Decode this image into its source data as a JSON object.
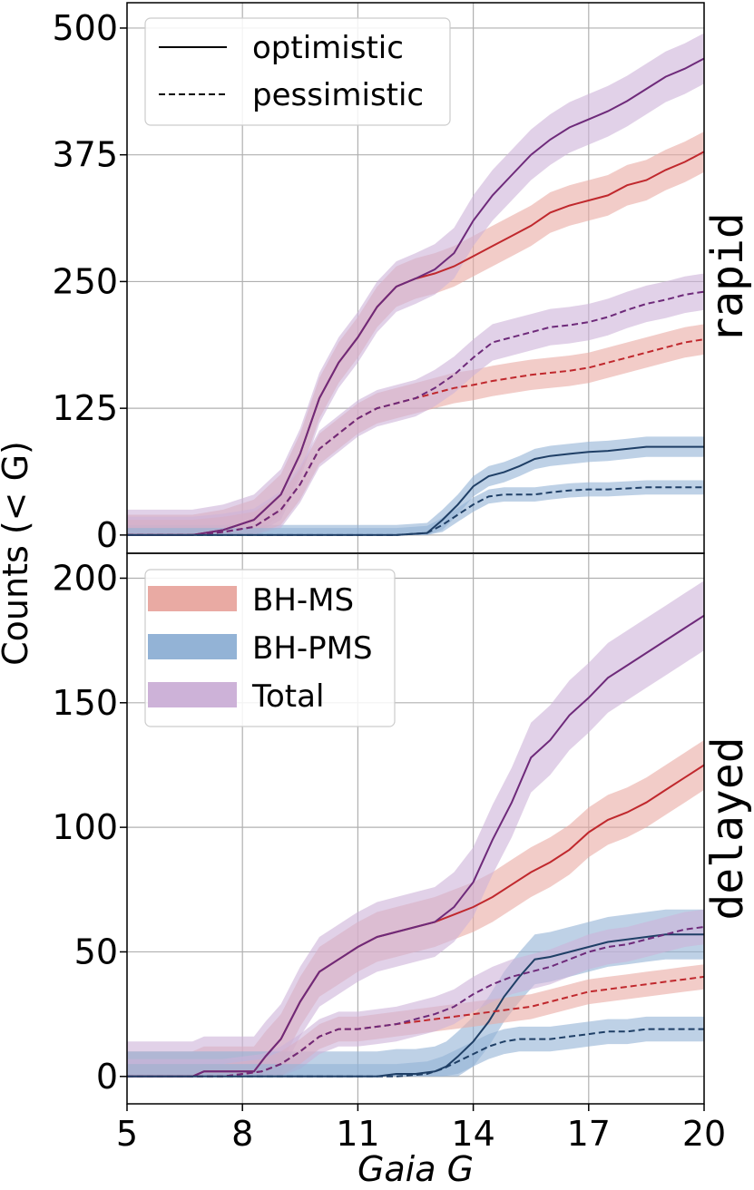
{
  "chart_data": {
    "type": "line",
    "xlabel": "Gaia G",
    "ylabel": "Counts (< G)",
    "x_ticks": [
      "5",
      "8",
      "11",
      "14",
      "17",
      "20"
    ],
    "xlim": [
      5,
      20
    ],
    "grid": true,
    "colors": {
      "BH-MS": "#c0282d",
      "BH-PMS": "#1f3f66",
      "Total": "#6e2a7a",
      "BH-MS_band": "#e9aaa3",
      "BH-PMS_band": "#93b3d6",
      "Total_band": "#cdb2d8"
    },
    "line_legend": {
      "solid": "optimistic",
      "dashed": "pessimistic",
      "placement": "top-left"
    },
    "band_legend": {
      "items": [
        "BH-MS",
        "BH-PMS",
        "Total"
      ],
      "placement": "upper-left"
    },
    "panels": [
      {
        "label": "rapid",
        "ylim": [
          -18,
          525
        ],
        "y_ticks": [
          0,
          125,
          250,
          375,
          500
        ],
        "series": [
          {
            "name": "BH-MS",
            "style": "optimistic",
            "x": [
              5,
              6.7,
              7.5,
              8.3,
              9,
              9.5,
              10,
              10.5,
              11,
              11.5,
              12,
              12.5,
              13,
              13.5,
              14,
              14.5,
              15,
              15.5,
              16,
              16.5,
              17,
              17.5,
              18,
              18.5,
              19,
              19.5,
              20
            ],
            "y": [
              0,
              0,
              5,
              15,
              40,
              80,
              135,
              170,
              195,
              225,
              245,
              253,
              258,
              265,
              275,
              285,
              295,
              305,
              318,
              325,
              330,
              335,
              345,
              350,
              360,
              368,
              378
            ],
            "band": 20
          },
          {
            "name": "Total",
            "style": "optimistic",
            "x": [
              5,
              6.7,
              7.5,
              8.3,
              9,
              9.5,
              10,
              10.5,
              11,
              11.5,
              12,
              12.5,
              13,
              13.5,
              14,
              14.5,
              15,
              15.5,
              16,
              16.5,
              17,
              17.5,
              18,
              18.5,
              19,
              19.5,
              20
            ],
            "y": [
              0,
              0,
              5,
              15,
              40,
              80,
              135,
              170,
              195,
              225,
              245,
              253,
              262,
              278,
              310,
              335,
              355,
              375,
              390,
              402,
              410,
              418,
              428,
              440,
              452,
              460,
              470
            ],
            "band": 25
          },
          {
            "name": "BH-PMS",
            "style": "optimistic",
            "x": [
              5,
              12,
              12.8,
              13.2,
              13.6,
              14,
              14.4,
              14.8,
              15.2,
              15.6,
              16,
              16.5,
              17,
              17.5,
              18,
              18.5,
              19,
              20
            ],
            "y": [
              0,
              0,
              2,
              15,
              30,
              48,
              58,
              62,
              68,
              75,
              78,
              80,
              82,
              83,
              85,
              87,
              87,
              87
            ],
            "band": 10
          },
          {
            "name": "BH-MS",
            "style": "pessimistic",
            "x": [
              5,
              6.7,
              7.5,
              8.3,
              9,
              9.5,
              10,
              10.5,
              11,
              11.5,
              12,
              12.5,
              13,
              13.5,
              14,
              14.5,
              15,
              15.5,
              16,
              16.5,
              17,
              17.5,
              18,
              18.5,
              19,
              19.5,
              20
            ],
            "y": [
              0,
              0,
              3,
              8,
              25,
              50,
              85,
              100,
              115,
              125,
              130,
              135,
              140,
              145,
              148,
              152,
              155,
              158,
              160,
              162,
              165,
              170,
              175,
              180,
              185,
              190,
              193
            ],
            "band": 15
          },
          {
            "name": "Total",
            "style": "pessimistic",
            "x": [
              5,
              6.7,
              7.5,
              8.3,
              9,
              9.5,
              10,
              10.5,
              11,
              11.5,
              12,
              12.5,
              13,
              13.5,
              14,
              14.5,
              15,
              15.5,
              16,
              16.5,
              17,
              17.5,
              18,
              18.5,
              19,
              19.5,
              20
            ],
            "y": [
              0,
              0,
              3,
              8,
              25,
              50,
              85,
              100,
              115,
              125,
              130,
              135,
              145,
              158,
              175,
              190,
              195,
              200,
              205,
              207,
              210,
              215,
              222,
              228,
              232,
              237,
              240
            ],
            "band": 18
          },
          {
            "name": "BH-PMS",
            "style": "pessimistic",
            "x": [
              5,
              12,
              12.8,
              13.2,
              13.6,
              14,
              14.4,
              14.8,
              15.2,
              15.6,
              16,
              16.5,
              17,
              17.5,
              18,
              18.5,
              19,
              20
            ],
            "y": [
              0,
              0,
              2,
              10,
              20,
              30,
              38,
              40,
              40,
              40,
              42,
              44,
              45,
              45,
              46,
              47,
              47,
              47
            ],
            "band": 7
          }
        ]
      },
      {
        "label": "delayed",
        "ylim": [
          -11,
          210
        ],
        "y_ticks": [
          0,
          50,
          100,
          150,
          200
        ],
        "series": [
          {
            "name": "BH-MS",
            "style": "optimistic",
            "x": [
              5,
              6.7,
              7,
              8.3,
              8.6,
              9,
              9.5,
              10,
              10.5,
              11,
              11.5,
              12,
              12.5,
              13,
              13.5,
              14,
              14.5,
              15,
              15.5,
              16,
              16.5,
              17,
              17.5,
              18,
              18.5,
              19,
              19.5,
              20
            ],
            "y": [
              0,
              0,
              2,
              2,
              8,
              15,
              30,
              42,
              47,
              52,
              56,
              58,
              60,
              62,
              65,
              68,
              72,
              77,
              82,
              86,
              91,
              98,
              103,
              106,
              110,
              115,
              120,
              125
            ],
            "band": 10
          },
          {
            "name": "Total",
            "style": "optimistic",
            "x": [
              5,
              6.7,
              7,
              8.3,
              8.6,
              9,
              9.5,
              10,
              10.5,
              11,
              11.5,
              12,
              12.5,
              13,
              13.5,
              14,
              14.5,
              15,
              15.5,
              16,
              16.5,
              17,
              17.5,
              18,
              18.5,
              19,
              19.5,
              20
            ],
            "y": [
              0,
              0,
              2,
              2,
              8,
              15,
              30,
              42,
              47,
              52,
              56,
              58,
              60,
              62,
              68,
              78,
              95,
              110,
              128,
              135,
              145,
              152,
              160,
              165,
              170,
              175,
              180,
              185
            ],
            "band": 14
          },
          {
            "name": "BH-PMS",
            "style": "optimistic",
            "x": [
              5,
              11.5,
              12,
              12.5,
              13,
              13.3,
              13.6,
              14,
              14.4,
              14.8,
              15.2,
              15.6,
              16,
              16.5,
              17,
              17.5,
              18,
              18.5,
              19,
              20
            ],
            "y": [
              0,
              0,
              1,
              1,
              2,
              4,
              8,
              14,
              22,
              32,
              40,
              47,
              48,
              50,
              52,
              54,
              55,
              56,
              57,
              57
            ],
            "band": 10
          },
          {
            "name": "BH-MS",
            "style": "pessimistic",
            "x": [
              5,
              7.5,
              8.5,
              9,
              9.5,
              10,
              10.5,
              11,
              11.5,
              12,
              12.5,
              13,
              13.5,
              14,
              14.5,
              15,
              15.5,
              16,
              16.5,
              17,
              17.5,
              18,
              18.5,
              19,
              19.5,
              20
            ],
            "y": [
              0,
              0,
              2,
              5,
              10,
              16,
              19,
              19,
              20,
              21,
              22,
              23,
              24,
              25,
              26,
              27,
              28,
              30,
              32,
              34,
              35,
              36,
              37,
              38,
              39,
              40
            ],
            "band": 5
          },
          {
            "name": "Total",
            "style": "pessimistic",
            "x": [
              5,
              7.5,
              8.5,
              9,
              9.5,
              10,
              10.5,
              11,
              11.5,
              12,
              12.5,
              13,
              13.5,
              14,
              14.5,
              15,
              15.5,
              16,
              16.5,
              17,
              17.5,
              18,
              18.5,
              19,
              19.5,
              20
            ],
            "y": [
              0,
              0,
              2,
              5,
              10,
              16,
              19,
              19,
              20,
              21,
              23,
              25,
              28,
              33,
              37,
              40,
              42,
              44,
              47,
              50,
              52,
              53,
              55,
              57,
              59,
              60
            ],
            "band": 7
          },
          {
            "name": "BH-PMS",
            "style": "pessimistic",
            "x": [
              5,
              12,
              12.8,
              13.2,
              13.6,
              14,
              14.4,
              14.8,
              15.2,
              15.6,
              16,
              16.5,
              17,
              17.5,
              18,
              18.5,
              19,
              20
            ],
            "y": [
              0,
              0,
              1,
              3,
              6,
              9,
              12,
              14,
              15,
              15,
              15,
              16,
              17,
              18,
              18,
              19,
              19,
              19
            ],
            "band": 5
          }
        ]
      }
    ]
  }
}
